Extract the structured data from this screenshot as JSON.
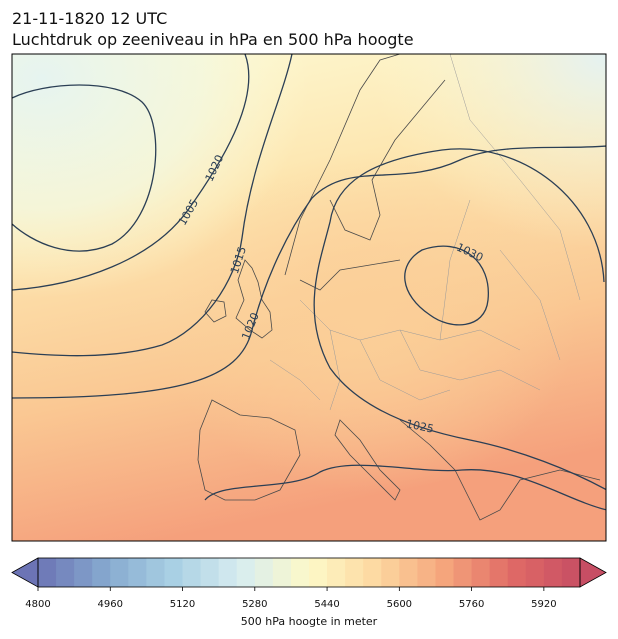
{
  "header": {
    "title": "21-11-1820 12 UTC",
    "subtitle": "Luchtdruk op zeeniveau in hPa en 500 hPa hoogte"
  },
  "map": {
    "contour_labels": [
      1030,
      1025,
      1020,
      1020,
      1015,
      1005
    ]
  },
  "colorbar": {
    "lim": [
      4800,
      6000
    ],
    "step": 40,
    "ticks": [
      4800,
      4960,
      5120,
      5280,
      5440,
      5600,
      5760,
      5920
    ],
    "colormap": [
      "#6c74b5",
      "#86a9cf",
      "#a9d0e4",
      "#d8edf0",
      "#fdf9c8",
      "#fdd8a0",
      "#f5a57c",
      "#e06a66",
      "#c74e64"
    ],
    "label": "500 hPa hoogte in meter"
  }
}
